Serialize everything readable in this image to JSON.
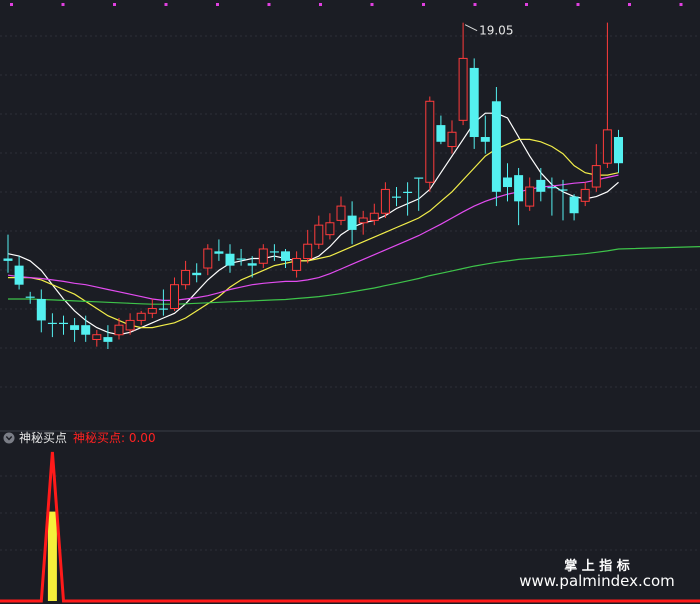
{
  "chart_data": [
    {
      "type": "candlestick",
      "title": "",
      "xlabel": "",
      "ylabel": "",
      "grid": true,
      "annotations": [
        {
          "text": "19.05",
          "index": 41,
          "value": 19.05
        }
      ],
      "candles": [
        {
          "o": 14.1,
          "c": 14.05,
          "h": 14.6,
          "l": 13.8,
          "up": false
        },
        {
          "o": 13.95,
          "c": 13.55,
          "h": 14.15,
          "l": 13.45,
          "up": false
        },
        {
          "o": 13.3,
          "c": 13.3,
          "h": 13.4,
          "l": 13.15,
          "up": false
        },
        {
          "o": 13.25,
          "c": 12.8,
          "h": 13.45,
          "l": 12.55,
          "up": false
        },
        {
          "o": 12.75,
          "c": 12.75,
          "h": 12.95,
          "l": 12.45,
          "up": false
        },
        {
          "o": 12.75,
          "c": 12.75,
          "h": 12.9,
          "l": 12.5,
          "up": false
        },
        {
          "o": 12.6,
          "c": 12.7,
          "h": 12.85,
          "l": 12.35,
          "up": false
        },
        {
          "o": 12.7,
          "c": 12.5,
          "h": 12.9,
          "l": 12.35,
          "up": false
        },
        {
          "o": 12.4,
          "c": 12.5,
          "h": 12.6,
          "l": 12.25,
          "up": true
        },
        {
          "o": 12.35,
          "c": 12.45,
          "h": 12.7,
          "l": 12.2,
          "up": false
        },
        {
          "o": 12.5,
          "c": 12.7,
          "h": 12.85,
          "l": 12.4,
          "up": true
        },
        {
          "o": 12.6,
          "c": 12.8,
          "h": 12.95,
          "l": 12.5,
          "up": true
        },
        {
          "o": 12.8,
          "c": 12.95,
          "h": 13.0,
          "l": 12.7,
          "up": true
        },
        {
          "o": 12.95,
          "c": 13.05,
          "h": 13.25,
          "l": 12.85,
          "up": true
        },
        {
          "o": 13.05,
          "c": 13.05,
          "h": 13.45,
          "l": 12.9,
          "up": false
        },
        {
          "o": 13.05,
          "c": 13.55,
          "h": 13.7,
          "l": 13.0,
          "up": true
        },
        {
          "o": 13.55,
          "c": 13.85,
          "h": 14.05,
          "l": 13.45,
          "up": true
        },
        {
          "o": 13.75,
          "c": 13.8,
          "h": 14.0,
          "l": 13.6,
          "up": false
        },
        {
          "o": 13.9,
          "c": 14.3,
          "h": 14.4,
          "l": 13.75,
          "up": true
        },
        {
          "o": 14.2,
          "c": 14.25,
          "h": 14.5,
          "l": 14.05,
          "up": false
        },
        {
          "o": 14.2,
          "c": 13.95,
          "h": 14.4,
          "l": 13.8,
          "up": false
        },
        {
          "o": 14.1,
          "c": 14.1,
          "h": 14.3,
          "l": 13.95,
          "up": false
        },
        {
          "o": 14.0,
          "c": 13.95,
          "h": 14.15,
          "l": 13.7,
          "up": false
        },
        {
          "o": 14.0,
          "c": 14.3,
          "h": 14.4,
          "l": 13.9,
          "up": true
        },
        {
          "o": 14.25,
          "c": 14.25,
          "h": 14.4,
          "l": 14.05,
          "up": false
        },
        {
          "o": 14.25,
          "c": 14.05,
          "h": 14.3,
          "l": 13.9,
          "up": false
        },
        {
          "o": 13.85,
          "c": 14.1,
          "h": 14.25,
          "l": 13.7,
          "up": true
        },
        {
          "o": 14.1,
          "c": 14.4,
          "h": 14.7,
          "l": 14.0,
          "up": true
        },
        {
          "o": 14.4,
          "c": 14.8,
          "h": 15.0,
          "l": 14.3,
          "up": true
        },
        {
          "o": 14.6,
          "c": 14.85,
          "h": 15.05,
          "l": 14.5,
          "up": true
        },
        {
          "o": 14.9,
          "c": 15.2,
          "h": 15.4,
          "l": 14.8,
          "up": true
        },
        {
          "o": 15.0,
          "c": 14.7,
          "h": 15.3,
          "l": 14.4,
          "up": false
        },
        {
          "o": 14.85,
          "c": 14.95,
          "h": 15.1,
          "l": 14.6,
          "up": true
        },
        {
          "o": 14.9,
          "c": 15.05,
          "h": 15.25,
          "l": 14.8,
          "up": true
        },
        {
          "o": 15.05,
          "c": 15.55,
          "h": 15.7,
          "l": 14.95,
          "up": true
        },
        {
          "o": 15.4,
          "c": 15.4,
          "h": 15.6,
          "l": 15.2,
          "up": false
        },
        {
          "o": 15.5,
          "c": 15.5,
          "h": 15.7,
          "l": 15.0,
          "up": false
        },
        {
          "o": 15.8,
          "c": 15.8,
          "h": 15.8,
          "l": 15.1,
          "up": false
        },
        {
          "o": 15.7,
          "c": 17.4,
          "h": 17.5,
          "l": 15.5,
          "up": true
        },
        {
          "o": 16.9,
          "c": 16.55,
          "h": 17.1,
          "l": 16.5,
          "up": false
        },
        {
          "o": 16.45,
          "c": 16.75,
          "h": 17.0,
          "l": 16.3,
          "up": true
        },
        {
          "o": 17.0,
          "c": 18.3,
          "h": 19.05,
          "l": 16.9,
          "up": true
        },
        {
          "o": 18.1,
          "c": 16.65,
          "h": 18.3,
          "l": 16.4,
          "up": false
        },
        {
          "o": 16.65,
          "c": 16.55,
          "h": 17.1,
          "l": 16.3,
          "up": false
        },
        {
          "o": 17.4,
          "c": 15.5,
          "h": 17.7,
          "l": 15.2,
          "up": false
        },
        {
          "o": 15.8,
          "c": 15.6,
          "h": 16.1,
          "l": 15.3,
          "up": false
        },
        {
          "o": 15.85,
          "c": 15.3,
          "h": 16.0,
          "l": 14.8,
          "up": false
        },
        {
          "o": 15.2,
          "c": 15.6,
          "h": 15.8,
          "l": 15.1,
          "up": true
        },
        {
          "o": 15.75,
          "c": 15.5,
          "h": 16.0,
          "l": 15.3,
          "up": false
        },
        {
          "o": 15.6,
          "c": 15.6,
          "h": 15.8,
          "l": 15.0,
          "up": false
        },
        {
          "o": 15.55,
          "c": 15.55,
          "h": 15.75,
          "l": 14.9,
          "up": false
        },
        {
          "o": 15.4,
          "c": 15.05,
          "h": 15.45,
          "l": 14.9,
          "up": false
        },
        {
          "o": 15.3,
          "c": 15.55,
          "h": 15.7,
          "l": 15.2,
          "up": true
        },
        {
          "o": 15.6,
          "c": 16.05,
          "h": 16.5,
          "l": 15.5,
          "up": true
        },
        {
          "o": 16.1,
          "c": 16.8,
          "h": 19.05,
          "l": 16.0,
          "up": true
        },
        {
          "o": 16.65,
          "c": 16.1,
          "h": 16.8,
          "l": 15.9,
          "up": false
        }
      ],
      "ma_lines": [
        {
          "color": "#ffffff",
          "values": [
            14.2,
            14.15,
            14.05,
            13.85,
            13.55,
            13.25,
            13.0,
            12.8,
            12.65,
            12.55,
            12.5,
            12.55,
            12.65,
            12.75,
            12.85,
            12.95,
            13.15,
            13.4,
            13.65,
            13.85,
            14.0,
            14.05,
            14.1,
            14.1,
            14.15,
            14.1,
            14.05,
            14.05,
            14.15,
            14.35,
            14.6,
            14.75,
            14.85,
            14.9,
            15.0,
            15.15,
            15.25,
            15.35,
            15.55,
            15.9,
            16.25,
            16.6,
            16.95,
            17.15,
            17.15,
            17.05,
            16.65,
            16.25,
            15.9,
            15.65,
            15.5,
            15.4,
            15.35,
            15.4,
            15.5,
            15.7
          ]
        },
        {
          "color": "#f2ee4a",
          "values": [
            13.7,
            13.7,
            13.7,
            13.65,
            13.55,
            13.45,
            13.35,
            13.2,
            13.05,
            12.9,
            12.8,
            12.7,
            12.65,
            12.65,
            12.7,
            12.75,
            12.85,
            13.0,
            13.15,
            13.3,
            13.5,
            13.65,
            13.75,
            13.85,
            13.95,
            14.0,
            14.05,
            14.05,
            14.1,
            14.15,
            14.25,
            14.35,
            14.45,
            14.55,
            14.65,
            14.75,
            14.85,
            14.95,
            15.1,
            15.3,
            15.5,
            15.75,
            16.0,
            16.25,
            16.4,
            16.5,
            16.6,
            16.6,
            16.55,
            16.45,
            16.3,
            16.05,
            15.9,
            15.85,
            15.85,
            15.9
          ]
        },
        {
          "color": "#e24cf0",
          "values": [
            13.75,
            13.72,
            13.7,
            13.68,
            13.65,
            13.62,
            13.58,
            13.55,
            13.5,
            13.45,
            13.4,
            13.35,
            13.3,
            13.25,
            13.22,
            13.22,
            13.25,
            13.28,
            13.32,
            13.38,
            13.45,
            13.5,
            13.55,
            13.58,
            13.6,
            13.62,
            13.62,
            13.65,
            13.7,
            13.78,
            13.88,
            13.98,
            14.08,
            14.18,
            14.28,
            14.38,
            14.48,
            14.58,
            14.7,
            14.82,
            14.95,
            15.08,
            15.2,
            15.3,
            15.38,
            15.45,
            15.5,
            15.55,
            15.6,
            15.62,
            15.65,
            15.68,
            15.7,
            15.75,
            15.8,
            15.85
          ]
        },
        {
          "color": "#3ec44a",
          "values": [
            13.25,
            13.25,
            13.25,
            13.24,
            13.23,
            13.22,
            13.21,
            13.2,
            13.19,
            13.18,
            13.17,
            13.16,
            13.15,
            13.14,
            13.14,
            13.14,
            13.15,
            13.16,
            13.17,
            13.18,
            13.19,
            13.2,
            13.21,
            13.22,
            13.23,
            13.24,
            13.26,
            13.28,
            13.3,
            13.33,
            13.36,
            13.4,
            13.44,
            13.48,
            13.53,
            13.58,
            13.63,
            13.68,
            13.74,
            13.79,
            13.84,
            13.89,
            13.94,
            13.98,
            14.02,
            14.05,
            14.08,
            14.1,
            14.12,
            14.14,
            14.16,
            14.18,
            14.2,
            14.23,
            14.26,
            14.3
          ]
        }
      ],
      "ylim": [
        10.5,
        19.4
      ]
    },
    {
      "type": "line",
      "title": "神秘买点",
      "legend": [
        {
          "name": "神秘买点:",
          "value": "0.00",
          "color": "#ff2222"
        }
      ],
      "ylim": [
        0,
        1.0
      ],
      "series": [
        {
          "color": "#ff1a1a",
          "values": [
            0,
            0,
            0,
            0,
            1,
            0,
            0,
            0,
            0,
            0,
            0,
            0,
            0,
            0,
            0,
            0,
            0,
            0,
            0,
            0,
            0,
            0,
            0,
            0,
            0,
            0,
            0,
            0,
            0,
            0,
            0,
            0,
            0,
            0,
            0,
            0,
            0,
            0,
            0,
            0,
            0,
            0,
            0,
            0,
            0,
            0,
            0,
            0,
            0,
            0,
            0,
            0,
            0,
            0,
            0,
            0
          ]
        }
      ],
      "bars": [
        {
          "index": 4,
          "value": 0.6,
          "color": "#f5ef3a"
        }
      ]
    }
  ],
  "watermark": {
    "line1": "掌 上 指 标",
    "line2": "www.palmindex.com"
  }
}
